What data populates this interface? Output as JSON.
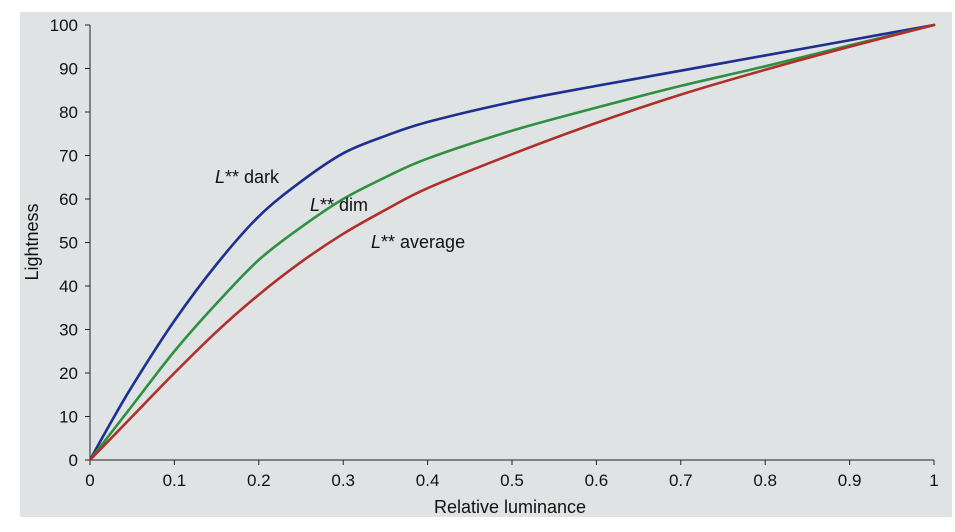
{
  "chart_data": {
    "type": "line",
    "title": "",
    "xlabel": "Relative luminance",
    "ylabel": "Lightness",
    "xlim": [
      0,
      1
    ],
    "ylim": [
      0,
      100
    ],
    "x_ticks": [
      "0",
      "0.1",
      "0.2",
      "0.3",
      "0.4",
      "0.5",
      "0.6",
      "0.7",
      "0.8",
      "0.9",
      "1"
    ],
    "y_ticks": [
      "0",
      "10",
      "20",
      "30",
      "40",
      "50",
      "60",
      "70",
      "80",
      "90",
      "100"
    ],
    "grid": false,
    "background_color": "#dfe3e3",
    "x": [
      0,
      0.02,
      0.05,
      0.1,
      0.15,
      0.2,
      0.25,
      0.3,
      0.35,
      0.4,
      0.5,
      0.6,
      0.7,
      0.8,
      0.9,
      1.0
    ],
    "series": [
      {
        "name": "L** dark",
        "color": "#1e2f8f",
        "values": [
          0,
          7,
          17,
          32,
          45,
          56,
          64,
          70.5,
          74.5,
          77.7,
          82.3,
          86,
          89.5,
          93,
          96.5,
          100
        ]
      },
      {
        "name": "L** dim",
        "color": "#2e9040",
        "values": [
          0,
          5,
          12.5,
          25,
          36,
          46,
          53.5,
          60,
          65,
          69.3,
          75.7,
          81,
          86,
          90.5,
          95.3,
          100
        ]
      },
      {
        "name": "L** average",
        "color": "#b02f2a",
        "values": [
          0,
          4,
          10,
          20,
          29.5,
          38,
          45.5,
          52,
          57.5,
          62.5,
          70.3,
          77.5,
          84,
          89.7,
          95,
          100
        ]
      }
    ],
    "annotations": [
      {
        "prefix": "L",
        "suffix": "** dark",
        "series": 0
      },
      {
        "prefix": "L",
        "suffix": "** dim",
        "series": 1
      },
      {
        "prefix": "L",
        "suffix": "** average",
        "series": 2
      }
    ]
  }
}
